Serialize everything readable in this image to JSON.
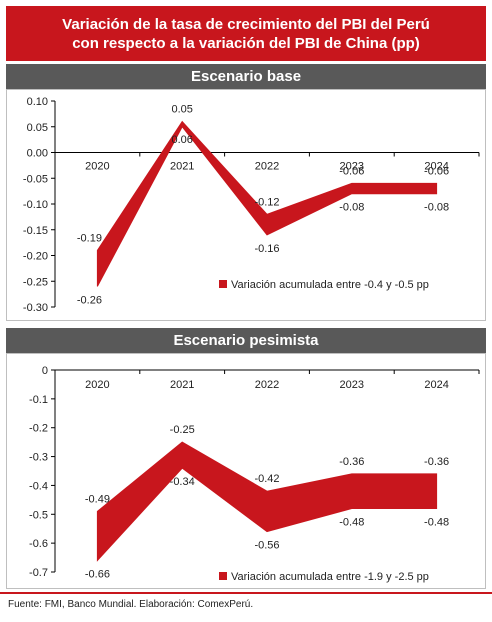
{
  "title_line1": "Variación de la tasa de crecimiento del PBI del Perú",
  "title_line2": "con respecto a la variación del PBI de China (pp)",
  "source": "Fuente: FMI, Banco Mundial. Elaboración: ComexPerú.",
  "colors": {
    "accent": "#c8161d",
    "header_gray": "#595959"
  },
  "chart_data": [
    {
      "type": "area",
      "title": "Escenario base",
      "categories": [
        "2020",
        "2021",
        "2022",
        "2023",
        "2024"
      ],
      "series": [
        {
          "name": "",
          "values": [
            -0.19,
            0.06,
            -0.12,
            -0.06,
            -0.06
          ]
        },
        {
          "name": "",
          "values": [
            -0.26,
            0.05,
            -0.16,
            -0.08,
            -0.08
          ]
        }
      ],
      "point_labels_upper": [
        "-0.19",
        "0.06",
        "-0.12",
        "-0.06",
        "-0.06"
      ],
      "point_labels_lower": [
        "-0.26",
        "0.05",
        "-0.16",
        "-0.08",
        "-0.08"
      ],
      "ylim": [
        -0.3,
        0.1
      ],
      "yticks": [
        "0.10",
        "0.05",
        "0.00",
        "-0.05",
        "-0.10",
        "-0.15",
        "-0.20",
        "-0.25",
        "-0.30"
      ],
      "legend": "Variación acumulada entre -0.4 y -0.5 pp",
      "legend_position": "bottom-right"
    },
    {
      "type": "area",
      "title": "Escenario pesimista",
      "categories": [
        "2020",
        "2021",
        "2022",
        "2023",
        "2024"
      ],
      "series": [
        {
          "name": "",
          "values": [
            -0.49,
            -0.25,
            -0.42,
            -0.36,
            -0.36
          ]
        },
        {
          "name": "",
          "values": [
            -0.66,
            -0.34,
            -0.56,
            -0.48,
            -0.48
          ]
        }
      ],
      "point_labels_upper": [
        "-0.49",
        "-0.25",
        "-0.42",
        "-0.36",
        "-0.36"
      ],
      "point_labels_lower": [
        "-0.66",
        "-0.34",
        "-0.56",
        "-0.48",
        "-0.48"
      ],
      "ylim": [
        -0.7,
        0
      ],
      "yticks": [
        "0",
        "-0.1",
        "-0.2",
        "-0.3",
        "-0.4",
        "-0.5",
        "-0.6",
        "-0.7"
      ],
      "legend": "Variación acumulada entre -1.9 y -2.5 pp",
      "legend_position": "bottom-right"
    }
  ]
}
